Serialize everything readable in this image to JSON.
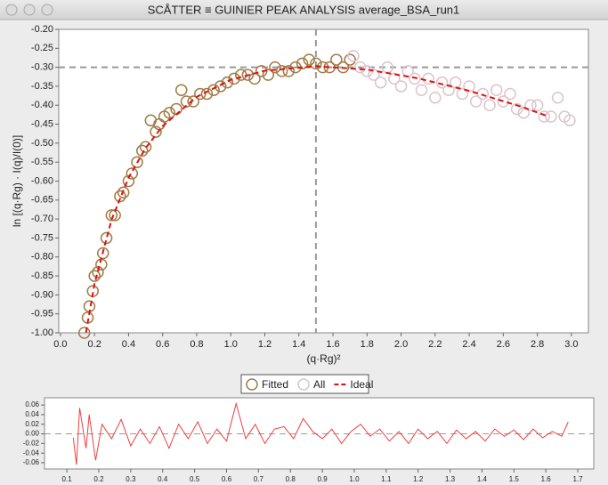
{
  "window_title": "SCÅTTER ≡ GUINIER PEAK ANALYSIS average_BSA_run1",
  "chart_data": [
    {
      "type": "scatter",
      "x_label": "(q·Rg)²",
      "y_label": "ln [(q·Rg) · I(q)/I(0)]",
      "xlim": [
        -0.01,
        3.1
      ],
      "ylim": [
        -1.0,
        -0.2
      ],
      "xticks": [
        {
          "value": 0,
          "label": "0.0"
        },
        0.2,
        0.4,
        0.6,
        0.8,
        {
          "value": 1,
          "label": "1.0"
        },
        1.2,
        1.4,
        1.6,
        1.8,
        {
          "value": 2,
          "label": "2.0"
        },
        2.2,
        2.4,
        2.6,
        2.8,
        {
          "value": 3,
          "label": "3.0"
        }
      ],
      "yticks": [
        {
          "value": -0.2,
          "label": "-0.20"
        },
        -0.25,
        {
          "value": -0.3,
          "label": "-0.30"
        },
        -0.35,
        {
          "value": -0.4,
          "label": "-0.40"
        },
        -0.45,
        {
          "value": -0.5,
          "label": "-0.50"
        },
        -0.55,
        {
          "value": -0.6,
          "label": "-0.60"
        },
        -0.65,
        {
          "value": -0.7,
          "label": "-0.70"
        },
        -0.75,
        {
          "value": -0.8,
          "label": "-0.80"
        },
        -0.85,
        {
          "value": -0.9,
          "label": "-0.90"
        },
        -0.95,
        {
          "value": -1.0,
          "label": "-1.00"
        }
      ],
      "hline": -0.3,
      "vline": 1.5,
      "series": [
        {
          "name": "Fitted",
          "color": "#a07c48",
          "marker": "circle",
          "x": [
            0.14,
            0.16,
            0.17,
            0.19,
            0.2,
            0.22,
            0.24,
            0.25,
            0.27,
            0.3,
            0.32,
            0.35,
            0.37,
            0.4,
            0.42,
            0.45,
            0.48,
            0.5,
            0.53,
            0.56,
            0.58,
            0.61,
            0.64,
            0.68,
            0.71,
            0.74,
            0.78,
            0.82,
            0.86,
            0.9,
            0.94,
            0.98,
            1.02,
            1.06,
            1.1,
            1.14,
            1.18,
            1.22,
            1.26,
            1.3,
            1.34,
            1.38,
            1.42,
            1.46,
            1.5,
            1.54,
            1.58,
            1.62,
            1.66,
            1.7
          ],
          "values": [
            -1.0,
            -0.96,
            -0.93,
            -0.89,
            -0.85,
            -0.84,
            -0.82,
            -0.79,
            -0.75,
            -0.69,
            -0.69,
            -0.64,
            -0.63,
            -0.6,
            -0.58,
            -0.55,
            -0.52,
            -0.51,
            -0.44,
            -0.47,
            -0.45,
            -0.43,
            -0.42,
            -0.41,
            -0.36,
            -0.39,
            -0.39,
            -0.37,
            -0.37,
            -0.36,
            -0.35,
            -0.34,
            -0.33,
            -0.32,
            -0.32,
            -0.33,
            -0.31,
            -0.32,
            -0.3,
            -0.31,
            -0.31,
            -0.3,
            -0.29,
            -0.28,
            -0.29,
            -0.3,
            -0.3,
            -0.28,
            -0.3,
            -0.28
          ]
        },
        {
          "name": "All",
          "color": "#dcc4cc",
          "marker": "circle",
          "x": [
            1.72,
            1.76,
            1.8,
            1.84,
            1.88,
            1.92,
            1.96,
            2.0,
            2.04,
            2.08,
            2.12,
            2.16,
            2.2,
            2.24,
            2.28,
            2.32,
            2.36,
            2.4,
            2.44,
            2.48,
            2.52,
            2.56,
            2.6,
            2.64,
            2.68,
            2.72,
            2.76,
            2.8,
            2.84,
            2.88,
            2.92,
            2.96,
            2.99
          ],
          "values": [
            -0.27,
            -0.3,
            -0.31,
            -0.32,
            -0.34,
            -0.3,
            -0.33,
            -0.35,
            -0.31,
            -0.33,
            -0.36,
            -0.33,
            -0.38,
            -0.34,
            -0.36,
            -0.34,
            -0.37,
            -0.35,
            -0.39,
            -0.37,
            -0.4,
            -0.36,
            -0.39,
            -0.37,
            -0.41,
            -0.42,
            -0.4,
            -0.4,
            -0.43,
            -0.43,
            -0.38,
            -0.43,
            -0.44
          ]
        },
        {
          "name": "Ideal",
          "color": "#e01010",
          "marker": "dashed-line",
          "x": [
            0.15,
            0.2,
            0.3,
            0.4,
            0.5,
            0.6,
            0.8,
            1.0,
            1.2,
            1.5,
            1.8,
            2.1,
            2.4,
            2.7,
            2.85
          ],
          "values": [
            -0.999,
            -0.871,
            -0.702,
            -0.591,
            -0.513,
            -0.455,
            -0.378,
            -0.333,
            -0.309,
            -0.297,
            -0.306,
            -0.329,
            -0.362,
            -0.403,
            -0.427
          ]
        }
      ]
    },
    {
      "type": "line",
      "xlim": [
        0.03,
        1.75
      ],
      "ylim": [
        -0.073,
        0.075
      ],
      "hline": 0,
      "xticks": [
        0.1,
        0.2,
        0.3,
        0.4,
        0.5,
        0.6,
        0.7,
        0.8,
        0.9,
        {
          "value": 1,
          "label": "1.0"
        },
        1.1,
        1.2,
        1.3,
        1.4,
        1.5,
        1.6,
        1.7
      ],
      "yticks": [
        0.06,
        0.04,
        0.02,
        {
          "value": 0,
          "label": "0.00"
        },
        -0.02,
        -0.04,
        -0.06
      ],
      "series": [
        {
          "color": "#f04040",
          "x": [
            0.12,
            0.13,
            0.14,
            0.16,
            0.17,
            0.19,
            0.21,
            0.24,
            0.27,
            0.3,
            0.33,
            0.36,
            0.39,
            0.42,
            0.45,
            0.48,
            0.51,
            0.54,
            0.57,
            0.6,
            0.63,
            0.66,
            0.69,
            0.72,
            0.75,
            0.78,
            0.81,
            0.84,
            0.87,
            0.9,
            0.93,
            0.96,
            0.99,
            1.02,
            1.05,
            1.08,
            1.11,
            1.14,
            1.17,
            1.2,
            1.23,
            1.26,
            1.29,
            1.32,
            1.35,
            1.38,
            1.41,
            1.44,
            1.47,
            1.5,
            1.53,
            1.56,
            1.59,
            1.62,
            1.65,
            1.67
          ],
          "values": [
            -0.008,
            -0.064,
            0.054,
            -0.03,
            0.04,
            -0.055,
            0.02,
            -0.01,
            0.03,
            -0.025,
            0.01,
            -0.02,
            0.015,
            -0.03,
            0.02,
            -0.01,
            0.025,
            -0.02,
            0.01,
            -0.015,
            0.063,
            -0.01,
            0.02,
            -0.02,
            0.01,
            0.015,
            -0.01,
            0.032,
            0.005,
            -0.01,
            0.01,
            -0.02,
            0.005,
            0.02,
            -0.005,
            0.01,
            -0.015,
            0.005,
            -0.02,
            0.01,
            -0.01,
            0.005,
            -0.02,
            0.008,
            -0.01,
            0.005,
            -0.015,
            0.01,
            -0.005,
            0.008,
            -0.012,
            0.01,
            -0.008,
            0.005,
            -0.005,
            0.025
          ]
        }
      ]
    }
  ]
}
